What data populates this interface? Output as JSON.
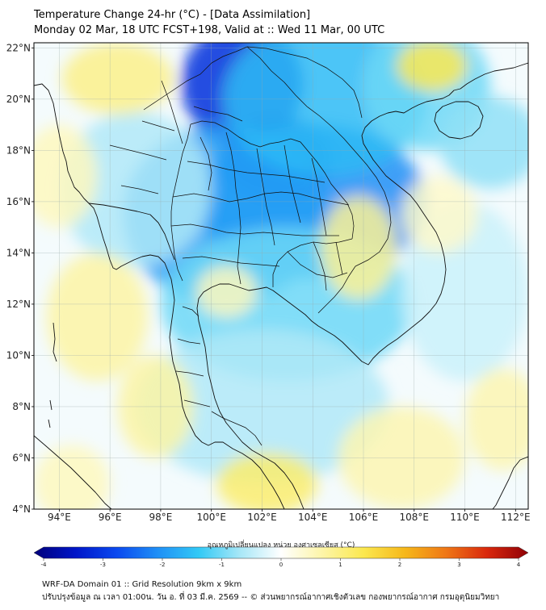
{
  "header": {
    "title": "Temperature Change 24-hr (°C) - [Data Assimilation]",
    "subtitle": "Monday 02 Mar, 18 UTC FCST+198, Valid at :: Wed 11 Mar, 00 UTC"
  },
  "map": {
    "lon_min": 93,
    "lon_max": 112.5,
    "lat_min": 4,
    "lat_max": 22.2,
    "lat_labels": [
      "4°N",
      "6°N",
      "8°N",
      "10°N",
      "12°N",
      "14°N",
      "16°N",
      "18°N",
      "20°N",
      "22°N"
    ],
    "lat_values": [
      4,
      6,
      8,
      10,
      12,
      14,
      16,
      18,
      20,
      22
    ],
    "lon_labels": [
      "94°E",
      "96°E",
      "98°E",
      "100°E",
      "102°E",
      "104°E",
      "106°E",
      "108°E",
      "110°E",
      "112°E"
    ],
    "lon_values": [
      94,
      96,
      98,
      100,
      102,
      104,
      106,
      108,
      110,
      112
    ],
    "anomalies": [
      {
        "lon": 101.2,
        "lat": 20.6,
        "value": -3.0,
        "rx": 2.4,
        "ry": 2.4
      },
      {
        "lon": 102.6,
        "lat": 17.7,
        "value": -3.2,
        "rx": 2.2,
        "ry": 1.6
      },
      {
        "lon": 104.0,
        "lat": 16.0,
        "value": -2.0,
        "rx": 4.5,
        "ry": 3.0
      },
      {
        "lon": 100.5,
        "lat": 15.5,
        "value": -1.8,
        "rx": 4.0,
        "ry": 3.5
      },
      {
        "lon": 104.5,
        "lat": 20.0,
        "value": -1.5,
        "rx": 4.0,
        "ry": 3.0
      },
      {
        "lon": 103.0,
        "lat": 12.0,
        "value": -1.0,
        "rx": 5.0,
        "ry": 3.0
      },
      {
        "lon": 108.5,
        "lat": 20.5,
        "value": -1.0,
        "rx": 2.5,
        "ry": 2.5
      },
      {
        "lon": 111.0,
        "lat": 18.3,
        "value": -0.8,
        "rx": 2.0,
        "ry": 1.8
      },
      {
        "lon": 102.0,
        "lat": 8.0,
        "value": -0.6,
        "rx": 5.0,
        "ry": 3.0
      },
      {
        "lon": 97.0,
        "lat": 16.5,
        "value": -0.6,
        "rx": 3.0,
        "ry": 3.0
      },
      {
        "lon": 110.0,
        "lat": 12.5,
        "value": -0.4,
        "rx": 2.5,
        "ry": 3.5
      },
      {
        "lon": 108.7,
        "lat": 21.3,
        "value": 1.3,
        "rx": 1.4,
        "ry": 1.0
      },
      {
        "lon": 96.3,
        "lat": 20.8,
        "value": 0.9,
        "rx": 2.2,
        "ry": 1.4
      },
      {
        "lon": 102.2,
        "lat": 5.0,
        "value": 1.1,
        "rx": 2.0,
        "ry": 1.2
      },
      {
        "lon": 105.8,
        "lat": 14.2,
        "value": 0.8,
        "rx": 1.5,
        "ry": 2.0
      },
      {
        "lon": 95.5,
        "lat": 11.5,
        "value": 0.7,
        "rx": 2.0,
        "ry": 2.5
      },
      {
        "lon": 97.8,
        "lat": 8.0,
        "value": 0.7,
        "rx": 1.5,
        "ry": 2.0
      },
      {
        "lon": 107.5,
        "lat": 6.0,
        "value": 0.6,
        "rx": 2.5,
        "ry": 2.0
      },
      {
        "lon": 111.5,
        "lat": 7.5,
        "value": 0.6,
        "rx": 1.5,
        "ry": 2.0
      },
      {
        "lon": 94.0,
        "lat": 17.0,
        "value": 0.5,
        "rx": 1.5,
        "ry": 2.0
      },
      {
        "lon": 100.6,
        "lat": 12.5,
        "value": 0.5,
        "rx": 1.2,
        "ry": 1.0
      },
      {
        "lon": 94.5,
        "lat": 5.0,
        "value": 0.5,
        "rx": 1.5,
        "ry": 1.5
      },
      {
        "lon": 109.0,
        "lat": 15.5,
        "value": 0.4,
        "rx": 1.5,
        "ry": 1.5
      }
    ]
  },
  "colorbar": {
    "label": "อุณหภูมิเปลี่ยนแปลง หน่วย องศาเซลเซียส (°C)",
    "min": -4,
    "max": 4,
    "ticks": [
      "-4",
      "-3",
      "-2",
      "-1",
      "0",
      "1",
      "2",
      "3",
      "4"
    ],
    "tick_values": [
      -4,
      -3,
      -2,
      -1,
      0,
      1,
      2,
      3,
      4
    ],
    "colors": [
      "#00007a",
      "#0016c8",
      "#0a48ef",
      "#1f8ff6",
      "#32c9f6",
      "#a7e7f7",
      "#ffffff",
      "#fdf5a8",
      "#fbe84f",
      "#f6b81a",
      "#ef7716",
      "#d9280c",
      "#8f0006"
    ]
  },
  "footer": {
    "line1": "WRF-DA Domain 01 :: Grid Resolution 9km x 9km",
    "line2": "ปรับปรุงข้อมูล ณ เวลา 01:00น. วัน อ. ที่ 03 มี.ค. 2569 -- © ส่วนพยากรณ์อากาศเชิงตัวเลข กองพยากรณ์อากาศ กรมอุตุนิยมวิทยา"
  }
}
